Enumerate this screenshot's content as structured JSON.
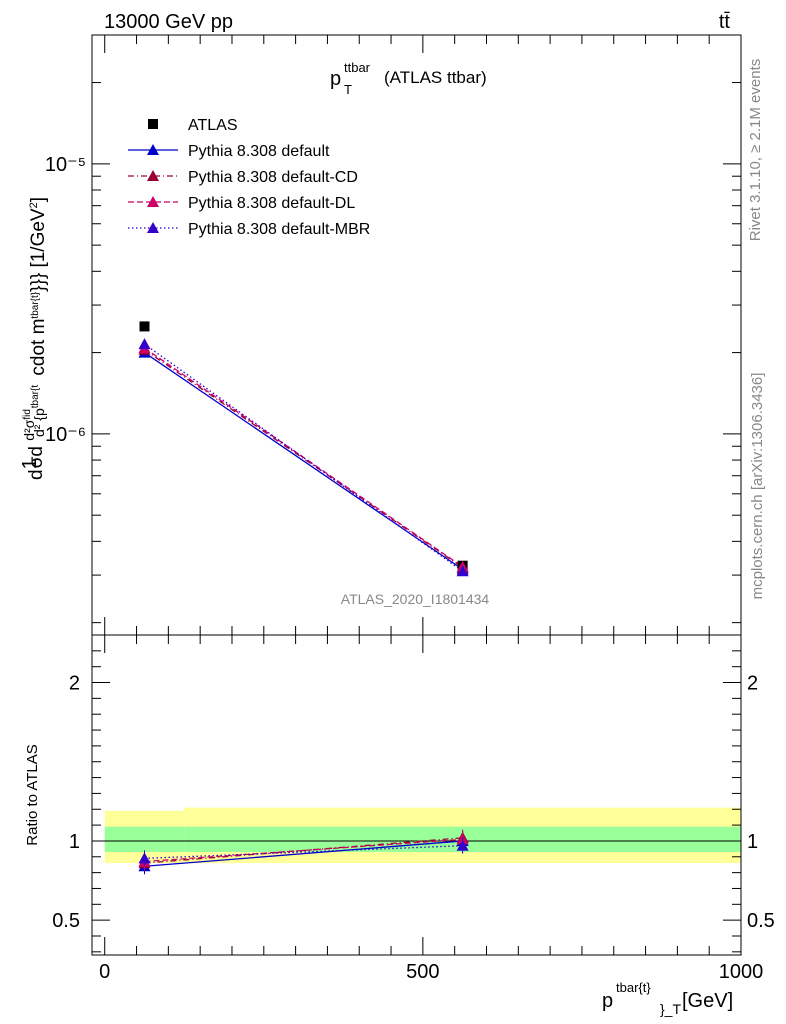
{
  "header": {
    "energy_label": "13000 GeV pp",
    "process_label": "tt̄"
  },
  "side_labels": {
    "rivet": "Rivet 3.1.10, ≥ 2.1M events",
    "mcplots": "mcplots.cern.ch [arXiv:1306.3436]"
  },
  "watermark": "ATLAS_2020_I1801434",
  "chart_data": [
    {
      "type": "line",
      "panel": "main",
      "title": "p_T^{ttbar} (ATLAS ttbar)",
      "title_main": "p",
      "title_sup": "ttbar",
      "title_sub": "T",
      "title_rest": "(ATLAS ttbar)",
      "ylabel": "d 1/σ d d²σ^{fid} / d² {p^{tbar{t}} cdot m^{tbar{t}}}} [1/GeV²]",
      "yscale": "log",
      "ylim": [
        1.8e-07,
        3e-05
      ],
      "xlim": [
        -20,
        1000
      ],
      "ytick_labels": [
        "10⁻⁵",
        "10⁻⁶"
      ],
      "legend_position": "top-left",
      "x": [
        62.5,
        562.5
      ],
      "series": [
        {
          "name": "ATLAS",
          "color": "#000000",
          "marker": "square",
          "line": "none",
          "values": [
            2.5e-06,
            3.25e-07
          ]
        },
        {
          "name": "Pythia 8.308 default",
          "color": "#0000cc",
          "marker": "triangle",
          "line": "solid",
          "values": [
            2e-06,
            3.15e-07
          ]
        },
        {
          "name": "Pythia 8.308 default-CD",
          "color": "#990033",
          "marker": "triangle",
          "line": "dashdot",
          "values": [
            2.05e-06,
            3.2e-07
          ]
        },
        {
          "name": "Pythia 8.308 default-DL",
          "color": "#cc0066",
          "marker": "triangle",
          "line": "dashed",
          "values": [
            2.08e-06,
            3.22e-07
          ]
        },
        {
          "name": "Pythia 8.308 default-MBR",
          "color": "#3300cc",
          "marker": "triangle",
          "line": "dotted",
          "values": [
            2.15e-06,
            3.1e-07
          ]
        }
      ]
    },
    {
      "type": "line",
      "panel": "ratio",
      "ylabel": "Ratio to ATLAS",
      "xlabel": "p^{tbar{t}}_T [GeV]",
      "xlabel_main": "p",
      "xlabel_sup": "tbar{t}",
      "xlabel_sub": "}_T",
      "xlabel_unit": "[GeV]",
      "ylim": [
        0.28,
        2.3
      ],
      "xlim": [
        -20,
        1000
      ],
      "yticks": [
        0.5,
        1,
        2
      ],
      "ytick_labels": [
        "0.5",
        "1",
        "2"
      ],
      "xticks": [
        0,
        500,
        1000
      ],
      "xtick_labels": [
        "0",
        "500",
        "1000"
      ],
      "x": [
        62.5,
        562.5
      ],
      "bands": [
        {
          "name": "total uncertainty",
          "color": "#ffff99",
          "bins": [
            [
              0,
              125,
              0.86,
              1.19
            ],
            [
              125,
              1000,
              0.86,
              1.21
            ]
          ]
        },
        {
          "name": "stat uncertainty",
          "color": "#99ff99",
          "bins": [
            [
              0,
              125,
              0.93,
              1.09
            ],
            [
              125,
              1000,
              0.93,
              1.09
            ]
          ]
        }
      ],
      "series": [
        {
          "name": "Pythia 8.308 default",
          "color": "#0000cc",
          "line": "solid",
          "values": [
            0.84,
            1.0
          ]
        },
        {
          "name": "Pythia 8.308 default-CD",
          "color": "#990033",
          "line": "dashdot",
          "values": [
            0.86,
            1.02
          ]
        },
        {
          "name": "Pythia 8.308 default-DL",
          "color": "#cc0066",
          "line": "dashed",
          "values": [
            0.87,
            1.01
          ]
        },
        {
          "name": "Pythia 8.308 default-MBR",
          "color": "#3300cc",
          "line": "dotted",
          "values": [
            0.89,
            0.97
          ]
        }
      ]
    }
  ]
}
